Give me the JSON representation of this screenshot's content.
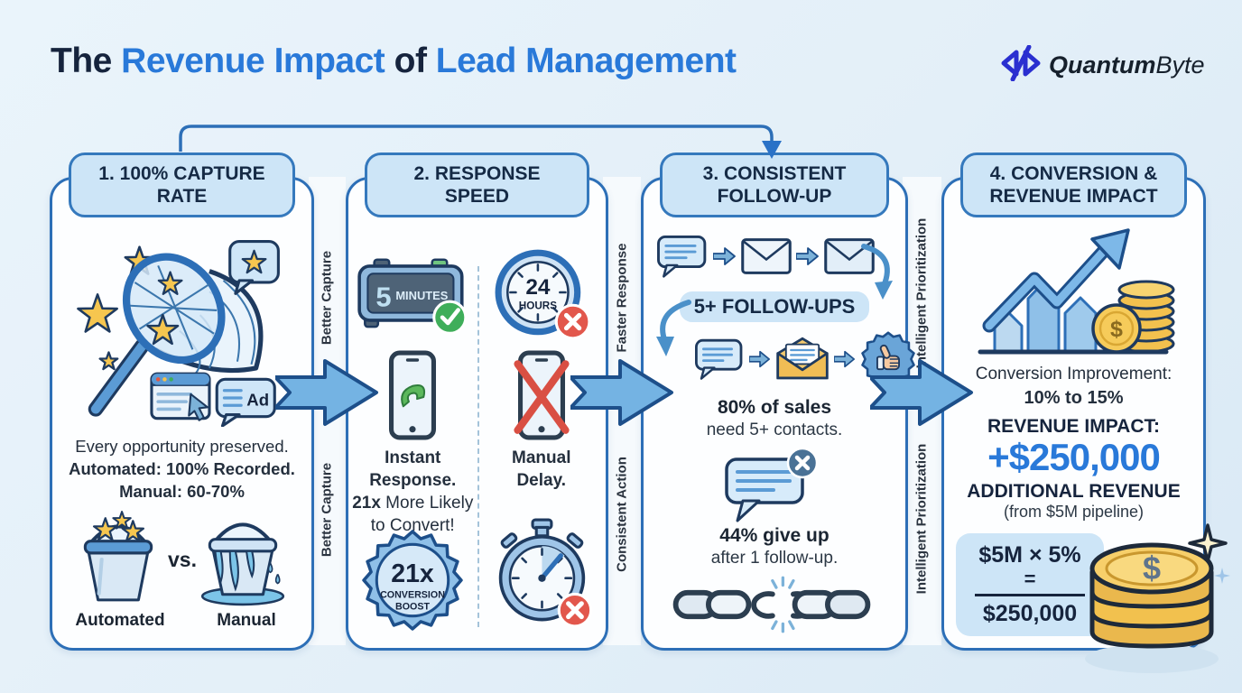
{
  "title": {
    "part1": "The ",
    "highlight1": "Revenue Impact",
    "part2": " of ",
    "highlight2": "Lead Management"
  },
  "logo": {
    "brand_bold": "Quantum",
    "brand_light": "Byte"
  },
  "connectors": {
    "gap1_top": "Better Capture",
    "gap1_bottom": "Better Capture",
    "gap2_top": "Faster Response",
    "gap2_bottom": "Consistent Action",
    "gap3_top": "Intelligent Prioritization",
    "gap3_bottom": "Intelligent Prioritization"
  },
  "panel1": {
    "header_line1": "1. 100% CAPTURE",
    "header_line2": "RATE",
    "line1": "Every opportunity preserved.",
    "line2": "Automated: 100% Recorded.",
    "line3": "Manual: 60-70%",
    "vs": "vs.",
    "bucket_left_label": "Automated",
    "bucket_right_label": "Manual",
    "ad_label": "Ad"
  },
  "panel2": {
    "header_line1": "2. RESPONSE",
    "header_line2": "SPEED",
    "clock_fast_value": "5",
    "clock_fast_unit": "MINUTES",
    "clock_slow_value": "24",
    "clock_slow_unit": "HOURS",
    "left_bold1": "Instant",
    "left_bold2": "Response.",
    "left_mid_bold": "21x",
    "left_mid_rest": " More Likely",
    "left_last": "to Convert!",
    "right_bold1": "Manual",
    "right_bold2": "Delay.",
    "badge_value": "21x",
    "badge_line1": "CONVERSION",
    "badge_line2": "BOOST"
  },
  "panel3": {
    "header_line1": "3. CONSISTENT",
    "header_line2": "FOLLOW-UP",
    "pill": "5+ FOLLOW-UPS",
    "stat1_bold": "80% of sales",
    "stat1_rest": "need 5+ contacts.",
    "stat2_bold": "44% give up",
    "stat2_rest": "after 1 follow-up."
  },
  "panel4": {
    "header_line1": "4. CONVERSION &",
    "header_line2": "REVENUE IMPACT",
    "conv_label": "Conversion Improvement:",
    "conv_value": "10% to 15%",
    "revenue_label": "REVENUE IMPACT:",
    "revenue_value": "+$250,000",
    "revenue_sub": "ADDITIONAL REVENUE",
    "revenue_note": "(from $5M pipeline)",
    "formula_top": "$5M × 5%",
    "formula_eq": "=",
    "formula_result": "$250,000",
    "coin_symbol": "$"
  },
  "colors": {
    "background": "#e7f1f9",
    "panel_border": "#2d6fb7",
    "pill_bg": "#cde5f7",
    "accent_blue": "#2979d9",
    "dark_text": "#16243d",
    "arrow_fill": "#74b3e3",
    "arrow_stroke": "#1d4f8a",
    "green": "#3fae5a",
    "red": "#e2574c",
    "gold": "#f2c14e"
  }
}
